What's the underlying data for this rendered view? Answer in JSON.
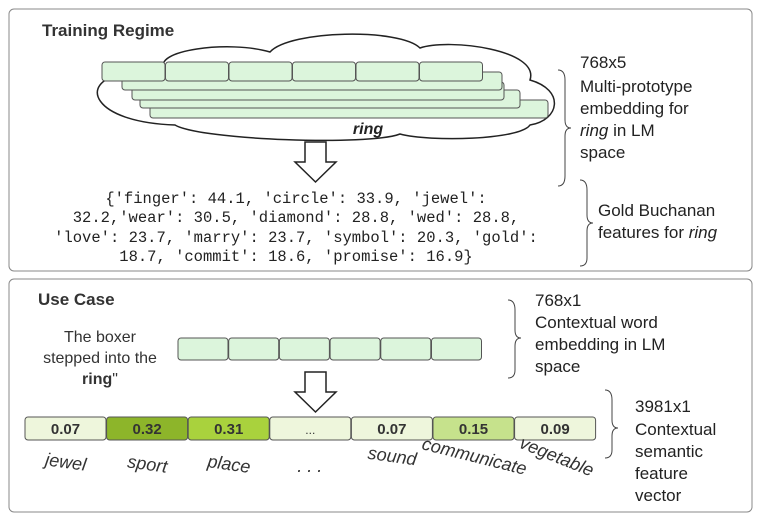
{
  "training": {
    "title": "Training Regime",
    "cloud_label": "ring",
    "dims": "768x5",
    "desc_lines": [
      "Multi-prototype",
      "embedding for"
    ],
    "desc_ring": "ring",
    "desc_ring_rest": " in LM",
    "desc_last": "space",
    "dict_lines": [
      "{'finger': 44.1, 'circle': 33.9, 'jewel':",
      "32.2,'wear': 30.5, 'diamond': 28.8, 'wed': 28.8,",
      "'love': 23.7, 'marry': 23.7, 'symbol': 20.3, 'gold':",
      "18.7, 'commit': 18.6, 'promise': 16.9}"
    ],
    "gold_line1": "Gold Buchanan",
    "gold_line2": "features for ",
    "gold_ring": "ring"
  },
  "use_case": {
    "title": "Use Case",
    "sentence_lines": [
      "The boxer",
      "stepped into the"
    ],
    "sentence_bold": "ring",
    "sentence_end": "\"",
    "emb_dims": "768x1",
    "emb_desc": [
      "Contextual word",
      "embedding in LM",
      "space"
    ],
    "vec_dims": "3981x1",
    "vec_desc": [
      "Contextual",
      "semantic",
      "feature",
      "vector"
    ],
    "features": [
      {
        "value": "0.07",
        "label": "jewel",
        "color": "#eef6dc"
      },
      {
        "value": "0.32",
        "label": "sport",
        "color": "#8db52a"
      },
      {
        "value": "0.31",
        "label": "place",
        "color": "#a9d23d"
      },
      {
        "value": "...",
        "label": ". . .",
        "color": "#eef6dc"
      },
      {
        "value": "0.07",
        "label": "sound",
        "color": "#eef6dc"
      },
      {
        "value": "0.15",
        "label": "communicate",
        "color": "#c6e28c"
      },
      {
        "value": "0.09",
        "label": "vegetable",
        "color": "#eef6dc"
      }
    ]
  },
  "colors": {
    "embedding_fill": "#dcf5dc",
    "stroke": "#555555"
  }
}
